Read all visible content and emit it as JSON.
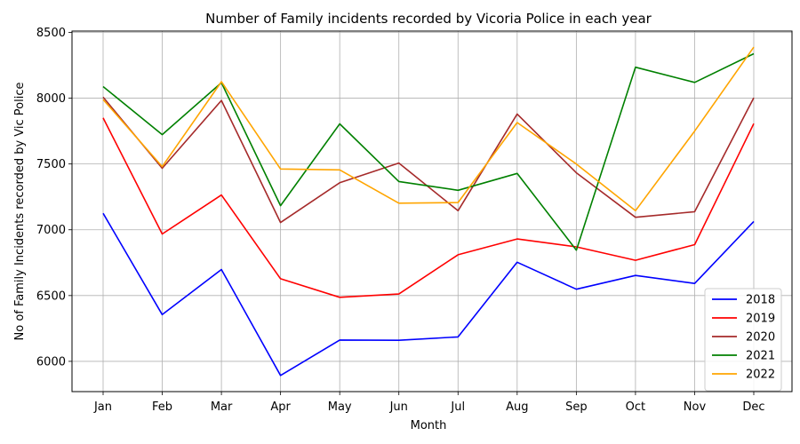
{
  "chart_data": {
    "type": "line",
    "title": "Number of Family incidents recorded by Vicoria Police in each year",
    "xlabel": "Month",
    "ylabel": "No of Family Incidents recorded by Vic Police",
    "categories": [
      "Jan",
      "Feb",
      "Mar",
      "Apr",
      "May",
      "Jun",
      "Jul",
      "Aug",
      "Sep",
      "Oct",
      "Nov",
      "Dec"
    ],
    "ylim": [
      5770,
      8510
    ],
    "yticks": [
      6000,
      6500,
      7000,
      7500,
      8000,
      8500
    ],
    "grid": true,
    "legend_position": "lower-right",
    "series": [
      {
        "name": "2018",
        "color": "#0000ff",
        "values": [
          7125,
          6355,
          6698,
          5893,
          6162,
          6160,
          6186,
          6753,
          6548,
          6653,
          6592,
          7063
        ]
      },
      {
        "name": "2019",
        "color": "#ff0000",
        "values": [
          7850,
          6968,
          7264,
          6628,
          6487,
          6512,
          6810,
          6930,
          6870,
          6768,
          6887,
          7807
        ]
      },
      {
        "name": "2020",
        "color": "#a52a2a",
        "values": [
          8008,
          7467,
          7983,
          7055,
          7357,
          7507,
          7145,
          7880,
          7433,
          7095,
          7137,
          8003
        ]
      },
      {
        "name": "2021",
        "color": "#008000",
        "values": [
          8088,
          7723,
          8118,
          7183,
          7805,
          7367,
          7300,
          7428,
          6845,
          8235,
          8120,
          8338
        ]
      },
      {
        "name": "2022",
        "color": "#ffa500",
        "values": [
          7990,
          7480,
          8125,
          7462,
          7455,
          7202,
          7207,
          7815,
          7500,
          7145,
          7750,
          8388
        ]
      }
    ]
  }
}
